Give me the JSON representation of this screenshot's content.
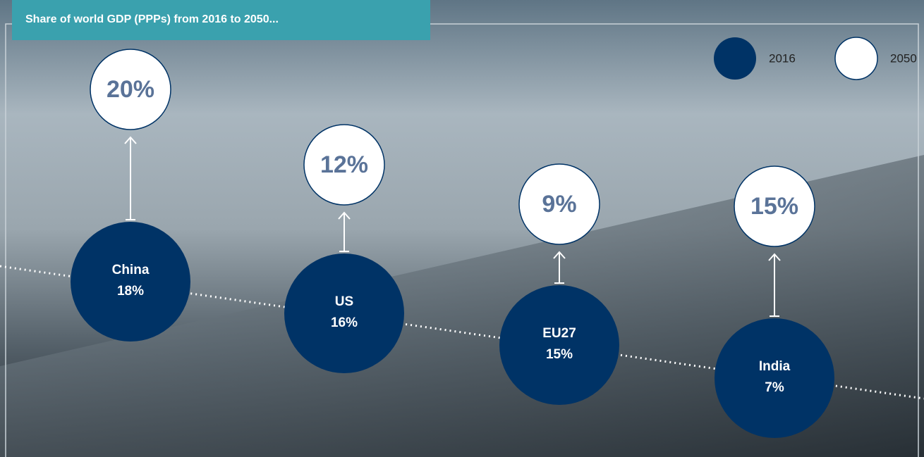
{
  "chart_data": {
    "type": "dot-arrow",
    "title": "Share of world GDP (PPPs) from 2016 to 2050...",
    "categories": [
      "China",
      "US",
      "EU27",
      "India"
    ],
    "series": [
      {
        "name": "2016",
        "color": "#003366",
        "values": [
          18,
          16,
          15,
          7
        ],
        "value_labels": [
          "18%",
          "16%",
          "15%",
          "7%"
        ]
      },
      {
        "name": "2050",
        "color": "#ffffff",
        "values": [
          20,
          12,
          9,
          15
        ],
        "value_labels": [
          "20%",
          "12%",
          "9%",
          "15%"
        ]
      }
    ]
  }
}
